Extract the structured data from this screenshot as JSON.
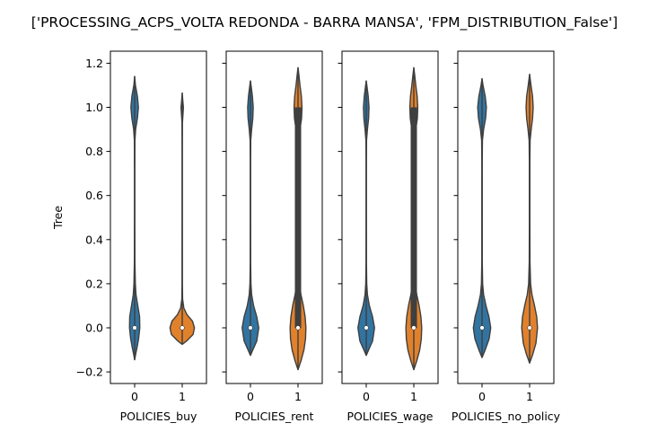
{
  "figure": {
    "suptitle": "['PROCESSING_ACPS_VOLTA REDONDA - BARRA MANSA', 'FPM_DISTRIBUTION_False']"
  },
  "colors": {
    "group0": "#3274a1",
    "group1": "#e1812c",
    "outline": "#3f3f3f",
    "median": "#ffffff"
  },
  "chart_data": [
    {
      "type": "violin",
      "title": "",
      "xlabel": "POLICIES_buy",
      "ylabel": "Tree",
      "categories": [
        "0",
        "1"
      ],
      "ylim": [
        -0.25,
        1.25
      ],
      "yticks": [
        -0.2,
        0.0,
        0.2,
        0.4,
        0.6,
        0.8,
        1.0,
        1.2
      ],
      "ytick_labels": [
        "−0.2",
        "0.0",
        "0.2",
        "0.4",
        "0.6",
        "0.8",
        "1.0",
        "1.2"
      ],
      "series": [
        {
          "category": "0",
          "median": 0.0,
          "q1": 0.0,
          "q3": 0.0,
          "profile": [
            [
              -0.145,
              0.0
            ],
            [
              -0.12,
              0.05
            ],
            [
              -0.09,
              0.12
            ],
            [
              -0.05,
              0.2
            ],
            [
              0.0,
              0.26
            ],
            [
              0.05,
              0.25
            ],
            [
              0.1,
              0.16
            ],
            [
              0.15,
              0.07
            ],
            [
              0.2,
              0.035
            ],
            [
              0.3,
              0.013
            ],
            [
              0.5,
              0.008
            ],
            [
              0.7,
              0.008
            ],
            [
              0.85,
              0.013
            ],
            [
              0.9,
              0.05
            ],
            [
              0.95,
              0.14
            ],
            [
              1.0,
              0.19
            ],
            [
              1.05,
              0.14
            ],
            [
              1.1,
              0.04
            ],
            [
              1.14,
              0.0
            ]
          ]
        },
        {
          "category": "1",
          "median": 0.0,
          "q1": 0.0,
          "q3": 0.0,
          "profile": [
            [
              -0.075,
              0.0
            ],
            [
              -0.06,
              0.22
            ],
            [
              -0.03,
              0.55
            ],
            [
              0.0,
              0.62
            ],
            [
              0.03,
              0.52
            ],
            [
              0.06,
              0.24
            ],
            [
              0.09,
              0.08
            ],
            [
              0.13,
              0.02
            ],
            [
              0.2,
              0.008
            ],
            [
              0.5,
              0.006
            ],
            [
              0.8,
              0.006
            ],
            [
              0.93,
              0.01
            ],
            [
              0.97,
              0.04
            ],
            [
              1.0,
              0.06
            ],
            [
              1.03,
              0.03
            ],
            [
              1.065,
              0.0
            ]
          ]
        }
      ]
    },
    {
      "type": "violin",
      "title": "",
      "xlabel": "POLICIES_rent",
      "ylabel": "",
      "categories": [
        "0",
        "1"
      ],
      "ylim": [
        -0.25,
        1.25
      ],
      "series": [
        {
          "category": "0",
          "median": 0.0,
          "q1": 0.0,
          "q3": 0.0,
          "profile": [
            [
              -0.125,
              0.0
            ],
            [
              -0.1,
              0.12
            ],
            [
              -0.06,
              0.32
            ],
            [
              0.0,
              0.42
            ],
            [
              0.05,
              0.32
            ],
            [
              0.1,
              0.16
            ],
            [
              0.15,
              0.06
            ],
            [
              0.2,
              0.025
            ],
            [
              0.3,
              0.01
            ],
            [
              0.5,
              0.008
            ],
            [
              0.75,
              0.008
            ],
            [
              0.85,
              0.015
            ],
            [
              0.9,
              0.06
            ],
            [
              0.95,
              0.12
            ],
            [
              1.0,
              0.14
            ],
            [
              1.05,
              0.1
            ],
            [
              1.1,
              0.03
            ],
            [
              1.12,
              0.0
            ]
          ]
        },
        {
          "category": "1",
          "median": 0.0,
          "q1": 0.0,
          "q3": 1.0,
          "profile": [
            [
              -0.19,
              0.0
            ],
            [
              -0.15,
              0.15
            ],
            [
              -0.1,
              0.3
            ],
            [
              -0.05,
              0.38
            ],
            [
              0.0,
              0.4
            ],
            [
              0.05,
              0.36
            ],
            [
              0.1,
              0.27
            ],
            [
              0.15,
              0.15
            ],
            [
              0.2,
              0.07
            ],
            [
              0.3,
              0.03
            ],
            [
              0.5,
              0.02
            ],
            [
              0.7,
              0.025
            ],
            [
              0.85,
              0.05
            ],
            [
              0.9,
              0.1
            ],
            [
              0.95,
              0.18
            ],
            [
              1.0,
              0.2
            ],
            [
              1.05,
              0.17
            ],
            [
              1.1,
              0.1
            ],
            [
              1.15,
              0.04
            ],
            [
              1.18,
              0.0
            ]
          ]
        }
      ]
    },
    {
      "type": "violin",
      "title": "",
      "xlabel": "POLICIES_wage",
      "ylabel": "",
      "categories": [
        "0",
        "1"
      ],
      "ylim": [
        -0.25,
        1.25
      ],
      "series": [
        {
          "category": "0",
          "median": 0.0,
          "q1": 0.0,
          "q3": 0.0,
          "profile": [
            [
              -0.125,
              0.0
            ],
            [
              -0.1,
              0.12
            ],
            [
              -0.06,
              0.32
            ],
            [
              0.0,
              0.42
            ],
            [
              0.05,
              0.32
            ],
            [
              0.1,
              0.16
            ],
            [
              0.15,
              0.06
            ],
            [
              0.2,
              0.025
            ],
            [
              0.3,
              0.01
            ],
            [
              0.5,
              0.008
            ],
            [
              0.75,
              0.008
            ],
            [
              0.85,
              0.015
            ],
            [
              0.9,
              0.06
            ],
            [
              0.95,
              0.12
            ],
            [
              1.0,
              0.14
            ],
            [
              1.05,
              0.1
            ],
            [
              1.1,
              0.03
            ],
            [
              1.12,
              0.0
            ]
          ]
        },
        {
          "category": "1",
          "median": 0.0,
          "q1": 0.0,
          "q3": 1.0,
          "profile": [
            [
              -0.19,
              0.0
            ],
            [
              -0.15,
              0.15
            ],
            [
              -0.1,
              0.3
            ],
            [
              -0.05,
              0.38
            ],
            [
              0.0,
              0.4
            ],
            [
              0.05,
              0.36
            ],
            [
              0.1,
              0.27
            ],
            [
              0.15,
              0.15
            ],
            [
              0.2,
              0.07
            ],
            [
              0.3,
              0.03
            ],
            [
              0.5,
              0.02
            ],
            [
              0.7,
              0.025
            ],
            [
              0.85,
              0.05
            ],
            [
              0.9,
              0.1
            ],
            [
              0.95,
              0.18
            ],
            [
              1.0,
              0.2
            ],
            [
              1.05,
              0.17
            ],
            [
              1.1,
              0.1
            ],
            [
              1.15,
              0.04
            ],
            [
              1.18,
              0.0
            ]
          ]
        }
      ]
    },
    {
      "type": "violin",
      "title": "",
      "xlabel": "POLICIES_no_policy",
      "ylabel": "",
      "categories": [
        "0",
        "1"
      ],
      "ylim": [
        -0.25,
        1.25
      ],
      "series": [
        {
          "category": "0",
          "median": 0.0,
          "q1": 0.0,
          "q3": 0.0,
          "profile": [
            [
              -0.135,
              0.0
            ],
            [
              -0.1,
              0.16
            ],
            [
              -0.05,
              0.36
            ],
            [
              0.0,
              0.44
            ],
            [
              0.05,
              0.35
            ],
            [
              0.1,
              0.2
            ],
            [
              0.15,
              0.08
            ],
            [
              0.2,
              0.03
            ],
            [
              0.3,
              0.012
            ],
            [
              0.5,
              0.01
            ],
            [
              0.75,
              0.01
            ],
            [
              0.85,
              0.02
            ],
            [
              0.9,
              0.08
            ],
            [
              0.95,
              0.18
            ],
            [
              1.0,
              0.22
            ],
            [
              1.05,
              0.16
            ],
            [
              1.1,
              0.05
            ],
            [
              1.13,
              0.0
            ]
          ]
        },
        {
          "category": "1",
          "median": 0.0,
          "q1": 0.0,
          "q3": 0.0,
          "profile": [
            [
              -0.16,
              0.0
            ],
            [
              -0.12,
              0.16
            ],
            [
              -0.07,
              0.32
            ],
            [
              0.0,
              0.4
            ],
            [
              0.05,
              0.36
            ],
            [
              0.1,
              0.25
            ],
            [
              0.15,
              0.12
            ],
            [
              0.2,
              0.05
            ],
            [
              0.3,
              0.018
            ],
            [
              0.5,
              0.012
            ],
            [
              0.75,
              0.012
            ],
            [
              0.85,
              0.025
            ],
            [
              0.9,
              0.08
            ],
            [
              0.95,
              0.15
            ],
            [
              1.0,
              0.18
            ],
            [
              1.05,
              0.15
            ],
            [
              1.1,
              0.07
            ],
            [
              1.15,
              0.0
            ]
          ]
        }
      ]
    }
  ]
}
